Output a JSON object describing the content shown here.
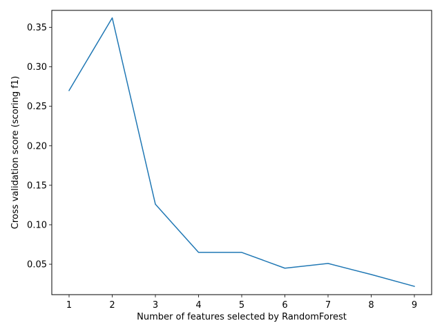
{
  "chart_data": {
    "type": "line",
    "title": "",
    "xlabel": "Number of features selected by RandomForest",
    "ylabel": "Cross validation score (scoring f1)",
    "xlim": [
      0.6,
      9.4
    ],
    "ylim": [
      0.0115,
      0.3715
    ],
    "grid": false,
    "x_ticks": [
      1,
      2,
      3,
      4,
      5,
      6,
      7,
      8,
      9
    ],
    "y_ticks": [
      0.05,
      0.1,
      0.15,
      0.2,
      0.25,
      0.3,
      0.35
    ],
    "y_tick_labels": [
      "0.05",
      "0.10",
      "0.15",
      "0.20",
      "0.25",
      "0.30",
      "0.35"
    ],
    "series": [
      {
        "color": "#1f77b4",
        "x": [
          1,
          2,
          3,
          4,
          5,
          6,
          7,
          8,
          9
        ],
        "y": [
          0.27,
          0.362,
          0.126,
          0.065,
          0.065,
          0.045,
          0.051,
          0.037,
          0.022
        ]
      }
    ]
  }
}
